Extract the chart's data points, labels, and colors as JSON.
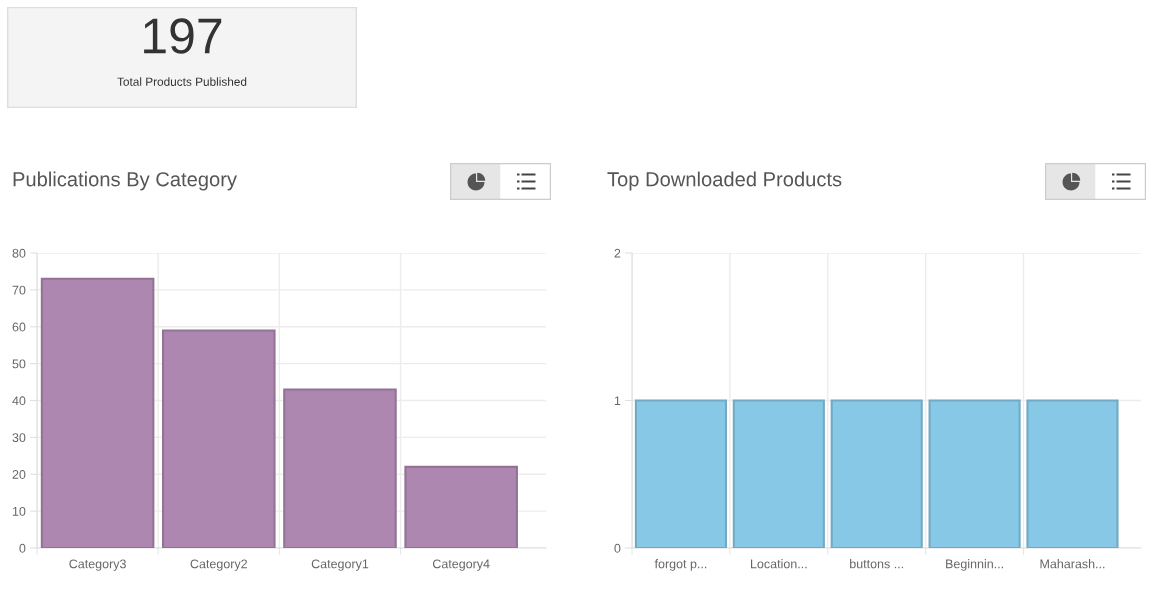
{
  "chart_data": [
    {
      "type": "other",
      "annotations": [
        "197",
        "Total Products Published"
      ]
    },
    {
      "type": "bar",
      "title": "Publications By Category",
      "categories": [
        "Category3",
        "Category2",
        "Category1",
        "Category4"
      ],
      "values": [
        73,
        59,
        43,
        22
      ],
      "color": "#ad87af",
      "ylim": [
        0,
        80
      ],
      "yticks": [
        0,
        10,
        20,
        30,
        40,
        50,
        60,
        70,
        80
      ],
      "grid": true
    },
    {
      "type": "bar",
      "title": "Top Downloaded Products",
      "categories": [
        "forgot p...",
        "Location...",
        "buttons ...",
        "Beginnin...",
        "Maharash..."
      ],
      "values": [
        1,
        1,
        1,
        1,
        1
      ],
      "color": "#86c8e6",
      "ylim": [
        0,
        2
      ],
      "yticks": [
        0,
        1,
        2
      ],
      "grid": true
    }
  ]
}
